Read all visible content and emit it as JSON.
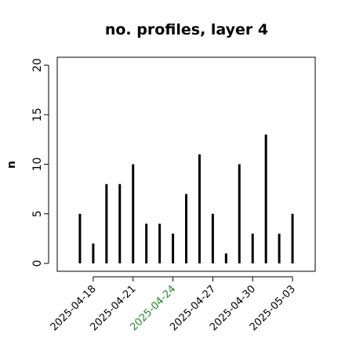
{
  "chart_data": {
    "type": "spike",
    "title": "no. profiles, layer 4",
    "y_label": "n",
    "x": [
      "2025-04-17",
      "2025-04-18",
      "2025-04-19",
      "2025-04-20",
      "2025-04-21",
      "2025-04-22",
      "2025-04-23",
      "2025-04-24",
      "2025-04-25",
      "2025-04-26",
      "2025-04-27",
      "2025-04-28",
      "2025-04-29",
      "2025-04-30",
      "2025-05-01",
      "2025-05-02",
      "2025-05-03"
    ],
    "values": [
      5,
      2,
      8,
      8,
      10,
      4,
      4,
      3,
      7,
      11,
      5,
      1,
      10,
      3,
      13,
      3,
      5
    ],
    "color": "#000000",
    "xlim": [
      "2025-04-15T07:00",
      "2025-05-04T17:00"
    ],
    "xticks": [
      "2025-04-18",
      "2025-04-21",
      "2025-04-24",
      "2025-04-27",
      "2025-04-30",
      "2025-05-03"
    ],
    "xtick_highlight_index": 2,
    "highlight_color": "#228B22",
    "ylim": [
      -0.8,
      20.8
    ],
    "yticks": [
      0,
      5,
      10,
      15,
      20
    ]
  }
}
